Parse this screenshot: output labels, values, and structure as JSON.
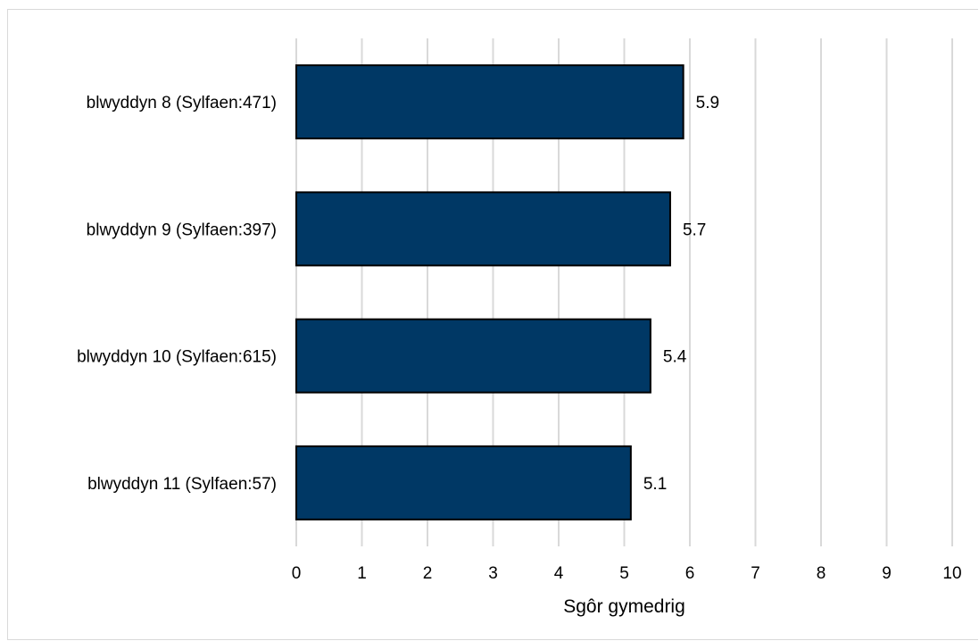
{
  "chart_data": {
    "type": "bar",
    "orientation": "horizontal",
    "categories": [
      "blwyddyn 8 (Sylfaen:471)",
      "blwyddyn 9 (Sylfaen:397)",
      "blwyddyn 10 (Sylfaen:615)",
      "blwyddyn 11 (Sylfaen:57)"
    ],
    "values": [
      5.9,
      5.7,
      5.4,
      5.1
    ],
    "value_labels": [
      "5.9",
      "5.7",
      "5.4",
      "5.1"
    ],
    "xlabel": "Sgôr gymedrig",
    "ylabel": "",
    "title": "",
    "xlim": [
      0,
      10
    ],
    "xticks": [
      "0",
      "1",
      "2",
      "3",
      "4",
      "5",
      "6",
      "7",
      "8",
      "9",
      "10"
    ],
    "grid": "vertical",
    "legend": "none",
    "bar_color": "#003865",
    "bar_edge_color": "#000000",
    "grid_color": "#d9d9d9"
  }
}
